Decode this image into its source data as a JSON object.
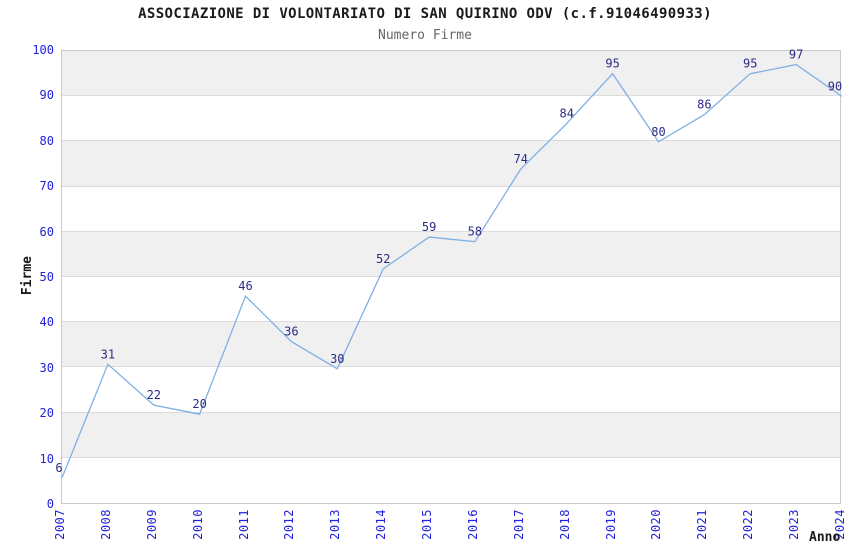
{
  "chart_data": {
    "type": "line",
    "title": "ASSOCIAZIONE DI VOLONTARIATO DI SAN QUIRINO ODV (c.f.91046490933)",
    "subtitle": "Numero Firme",
    "xlabel": "Anno",
    "ylabel": "Firme",
    "categories": [
      "2007",
      "2008",
      "2009",
      "2010",
      "2011",
      "2012",
      "2013",
      "2014",
      "2015",
      "2016",
      "2017",
      "2018",
      "2019",
      "2020",
      "2021",
      "2022",
      "2023",
      "2024"
    ],
    "values": [
      6,
      31,
      22,
      20,
      46,
      36,
      30,
      52,
      59,
      58,
      74,
      84,
      95,
      80,
      86,
      95,
      97,
      90
    ],
    "ylim": [
      0,
      100
    ],
    "yticks": [
      0,
      10,
      20,
      30,
      40,
      50,
      60,
      70,
      80,
      90,
      100
    ],
    "grid": "horizontal-bands-alternating",
    "legend": "none",
    "colors": {
      "line": "#7fb0e5",
      "point_label": "#2b2b85",
      "tick_label": "#2222dd",
      "band": "#f0f0f0",
      "grid_line": "#dcdcdc",
      "plot_border": "#c9c9c9",
      "title": "#1a1a1a",
      "subtitle": "#666666",
      "axis_label": "#1a1a1a",
      "background": "#ffffff"
    }
  }
}
